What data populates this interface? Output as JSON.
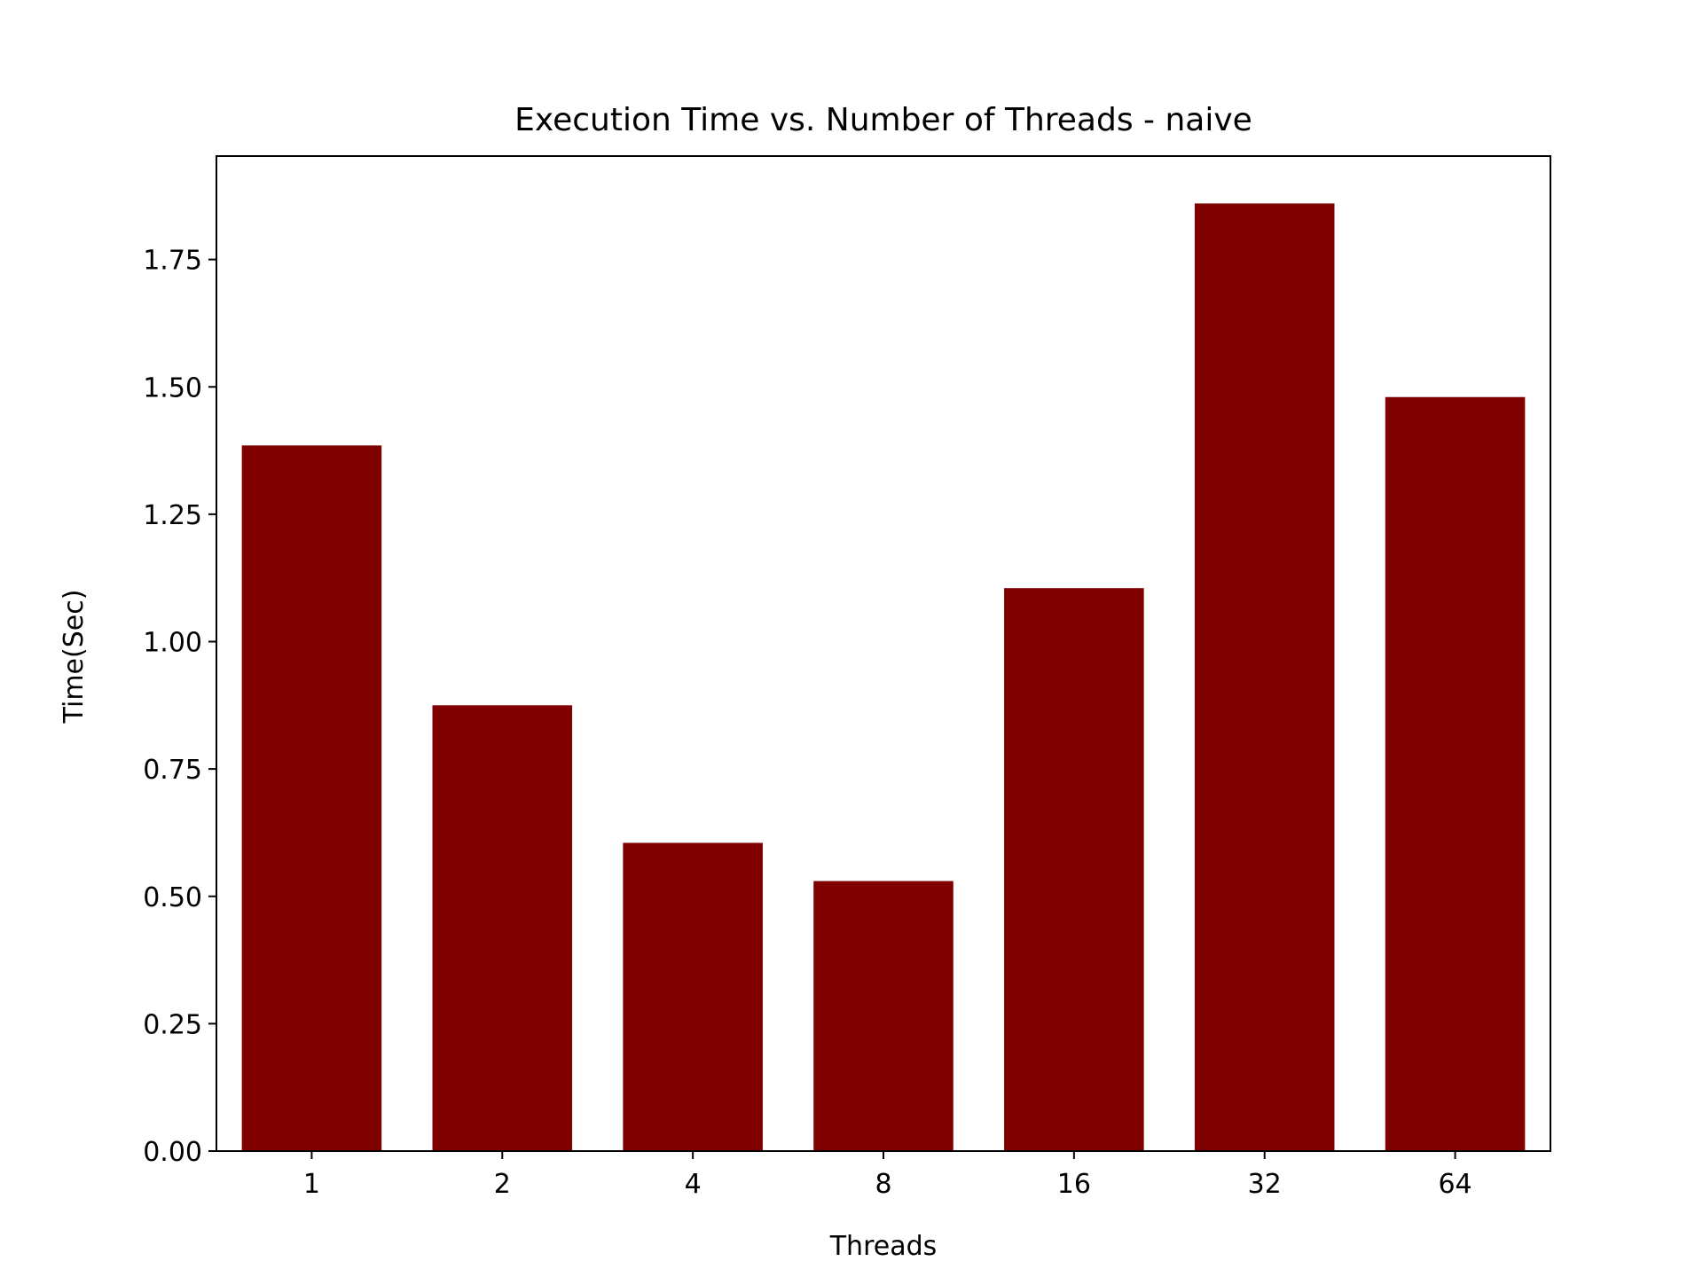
{
  "chart_data": {
    "type": "bar",
    "title": "Execution Time vs. Number of Threads - naive",
    "xlabel": "Threads",
    "ylabel": "Time(Sec)",
    "categories": [
      "1",
      "2",
      "4",
      "8",
      "16",
      "32",
      "64"
    ],
    "values": [
      1.385,
      0.875,
      0.605,
      0.53,
      1.105,
      1.86,
      1.48
    ],
    "ylim": [
      0,
      1.953
    ],
    "yticks": [
      0.0,
      0.25,
      0.5,
      0.75,
      1.0,
      1.25,
      1.5,
      1.75
    ],
    "ytick_labels": [
      "0.00",
      "0.25",
      "0.50",
      "0.75",
      "1.00",
      "1.25",
      "1.50",
      "1.75"
    ],
    "bar_color": "#800000",
    "grid": false,
    "legend": "none"
  }
}
